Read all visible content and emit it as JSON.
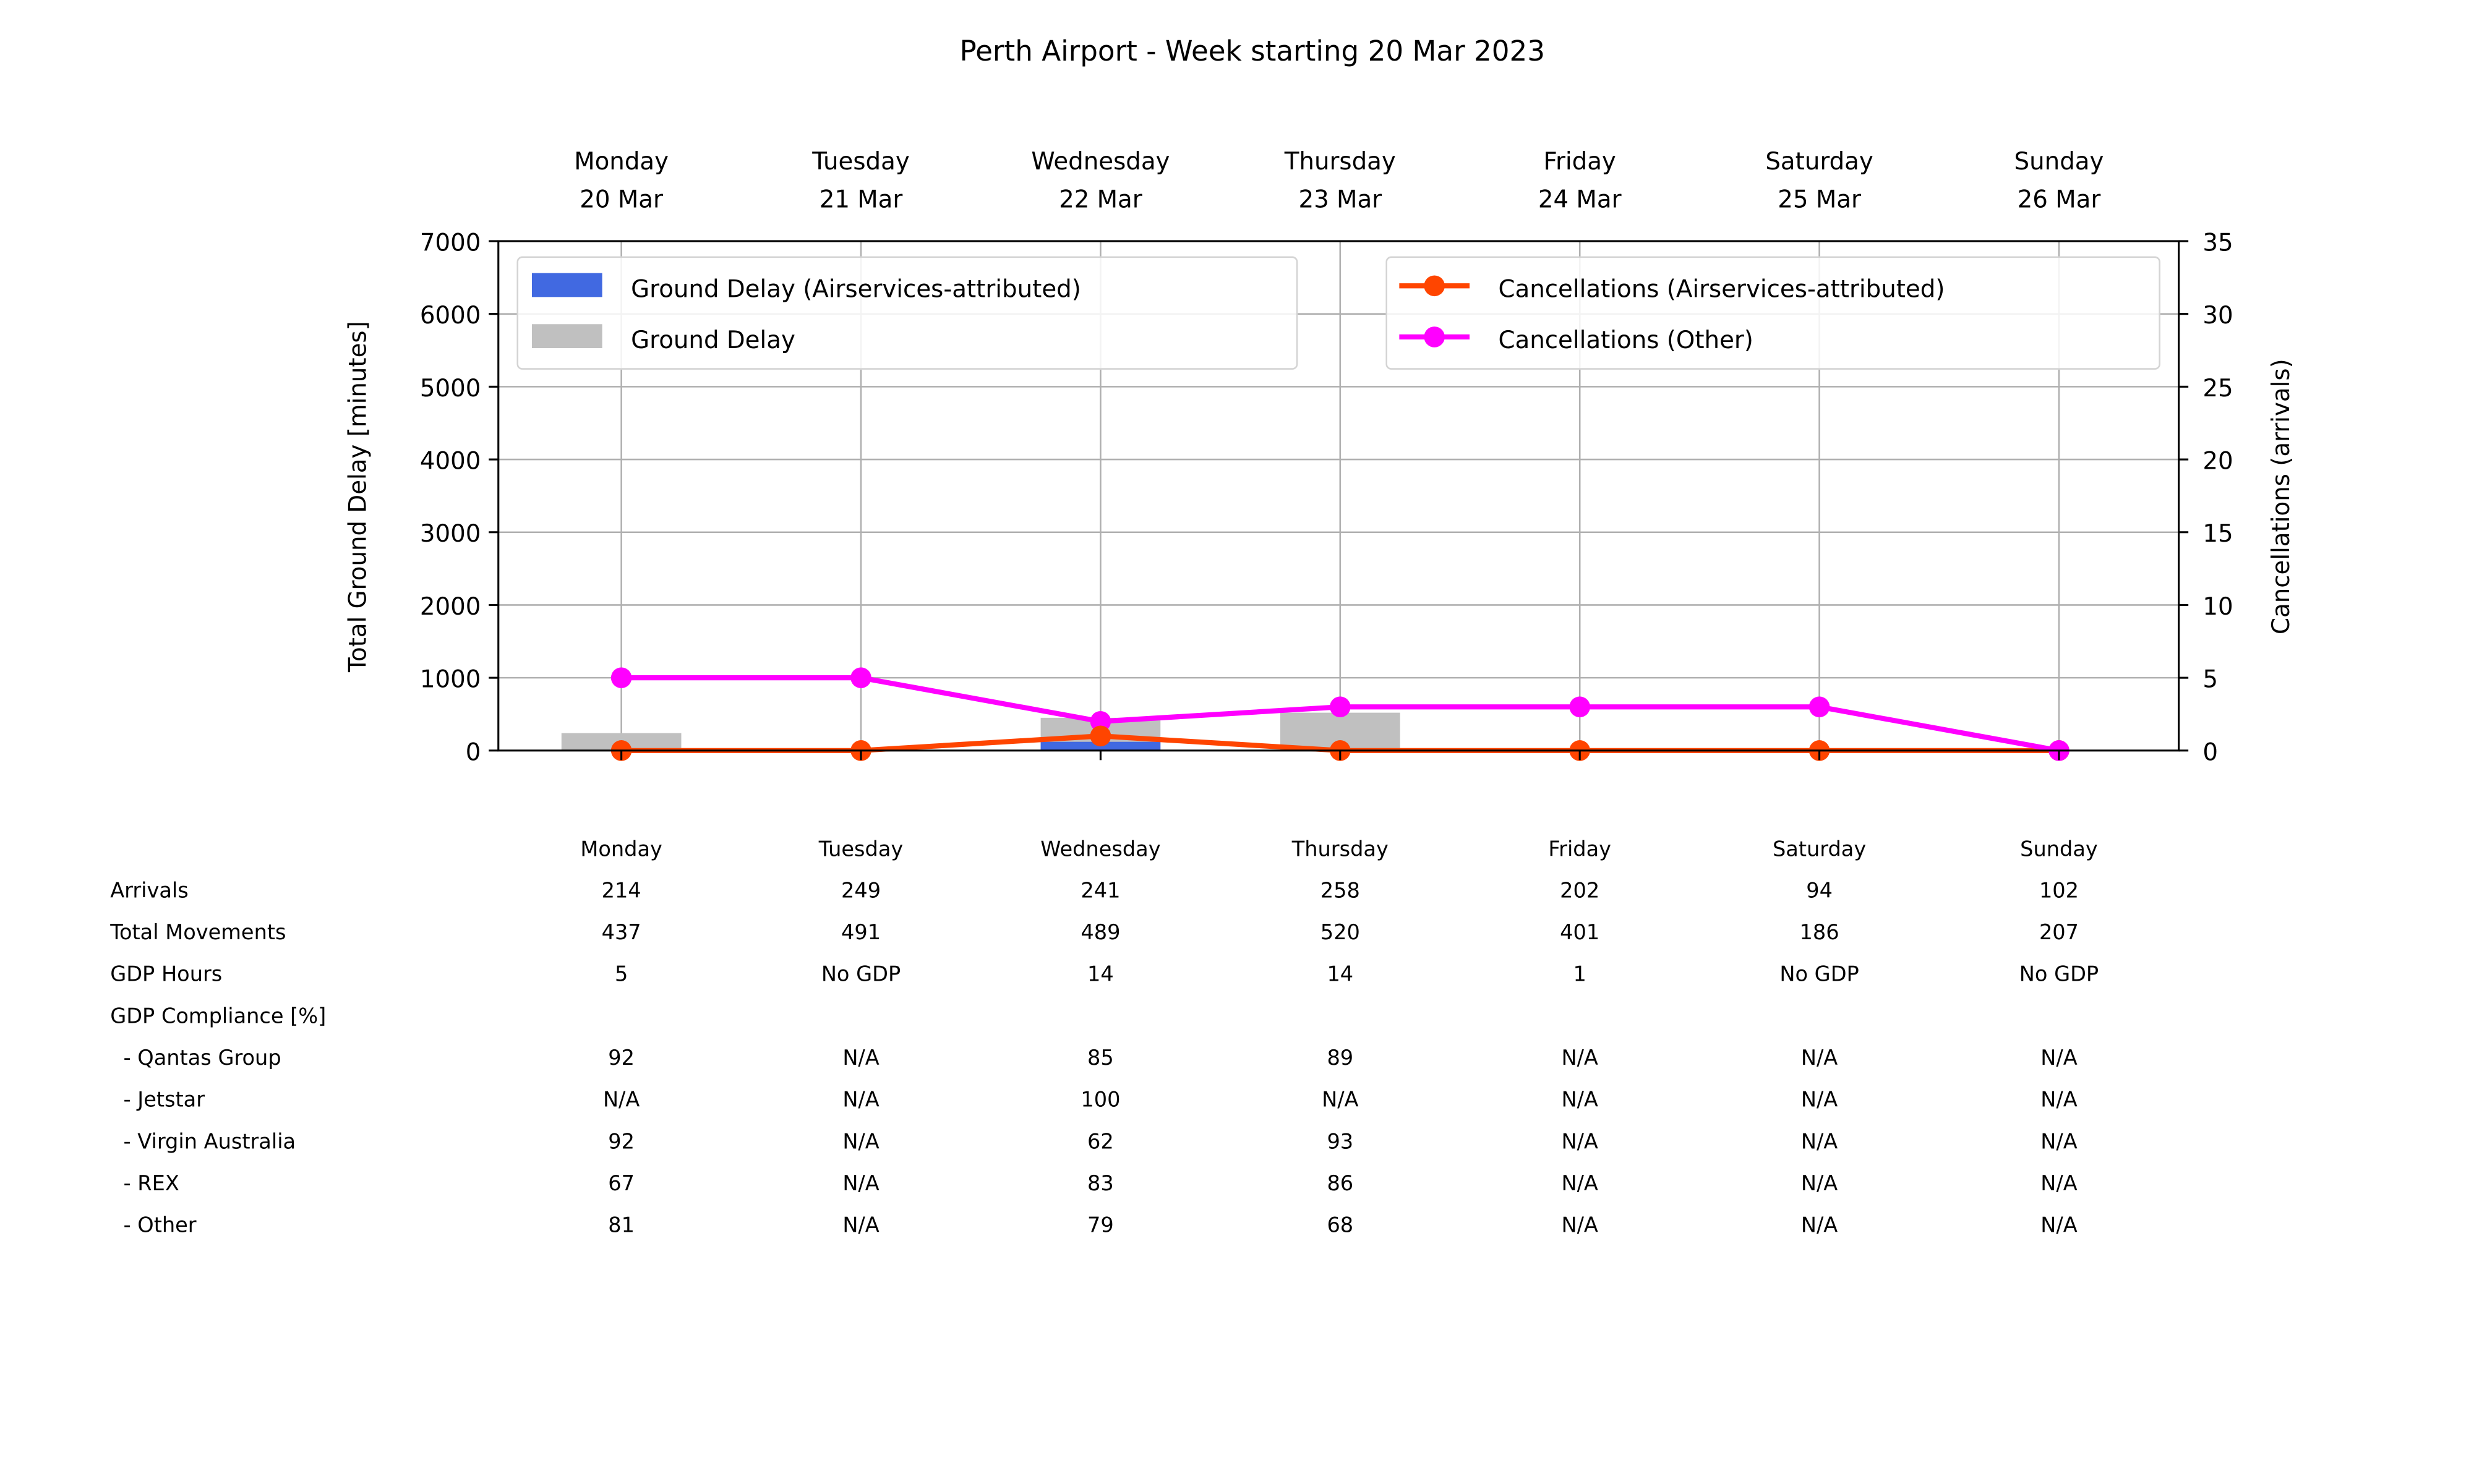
{
  "chart_data": {
    "type": "bar",
    "title": "Perth Airport - Week starting 20 Mar 2023",
    "categories": [
      {
        "day": "Monday",
        "date": "20 Mar"
      },
      {
        "day": "Tuesday",
        "date": "21 Mar"
      },
      {
        "day": "Wednesday",
        "date": "22 Mar"
      },
      {
        "day": "Thursday",
        "date": "23 Mar"
      },
      {
        "day": "Friday",
        "date": "24 Mar"
      },
      {
        "day": "Saturday",
        "date": "25 Mar"
      },
      {
        "day": "Sunday",
        "date": "26 Mar"
      }
    ],
    "ylabel": "Total Ground Delay [minutes]",
    "y2label": "Cancellations (arrivals)",
    "ylim": [
      0,
      7000
    ],
    "y2lim": [
      0,
      35
    ],
    "yticks": [
      0,
      1000,
      2000,
      3000,
      4000,
      5000,
      6000,
      7000
    ],
    "y2ticks": [
      0,
      5,
      10,
      15,
      20,
      25,
      30,
      35
    ],
    "grid": true,
    "bar_series": [
      {
        "name": "Ground Delay (Airservices-attributed)",
        "color": "#4169e1",
        "values": [
          0,
          0,
          120,
          0,
          0,
          0,
          0
        ]
      },
      {
        "name": "Ground Delay",
        "color": "#c0c0c0",
        "values": [
          240,
          0,
          450,
          520,
          0,
          0,
          0
        ]
      }
    ],
    "line_series": [
      {
        "name": "Cancellations (Airservices-attributed)",
        "color": "#ff4500",
        "values": [
          0,
          0,
          1,
          0,
          0,
          0,
          0
        ]
      },
      {
        "name": "Cancellations (Other)",
        "color": "#ff00ff",
        "values": [
          5,
          5,
          2,
          3,
          3,
          3,
          0
        ]
      }
    ],
    "legend_left_placement": "upper-left",
    "legend_right_placement": "upper-right"
  },
  "table": {
    "header": [
      "Monday",
      "Tuesday",
      "Wednesday",
      "Thursday",
      "Friday",
      "Saturday",
      "Sunday"
    ],
    "rows": [
      {
        "label": "Arrivals",
        "values": [
          "214",
          "249",
          "241",
          "258",
          "202",
          "94",
          "102"
        ]
      },
      {
        "label": "Total Movements",
        "values": [
          "437",
          "491",
          "489",
          "520",
          "401",
          "186",
          "207"
        ]
      },
      {
        "label": "GDP Hours",
        "values": [
          "5",
          "No GDP",
          "14",
          "14",
          "1",
          "No GDP",
          "No GDP"
        ]
      },
      {
        "label": "GDP Compliance [%]",
        "values": [
          "",
          "",
          "",
          "",
          "",
          "",
          ""
        ]
      },
      {
        "label": "  - Qantas Group",
        "values": [
          "92",
          "N/A",
          "85",
          "89",
          "N/A",
          "N/A",
          "N/A"
        ]
      },
      {
        "label": "  - Jetstar",
        "values": [
          "N/A",
          "N/A",
          "100",
          "N/A",
          "N/A",
          "N/A",
          "N/A"
        ]
      },
      {
        "label": "  - Virgin Australia",
        "values": [
          "92",
          "N/A",
          "62",
          "93",
          "N/A",
          "N/A",
          "N/A"
        ]
      },
      {
        "label": "  - REX",
        "values": [
          "67",
          "N/A",
          "83",
          "86",
          "N/A",
          "N/A",
          "N/A"
        ]
      },
      {
        "label": "  - Other",
        "values": [
          "81",
          "N/A",
          "79",
          "68",
          "N/A",
          "N/A",
          "N/A"
        ]
      }
    ]
  }
}
